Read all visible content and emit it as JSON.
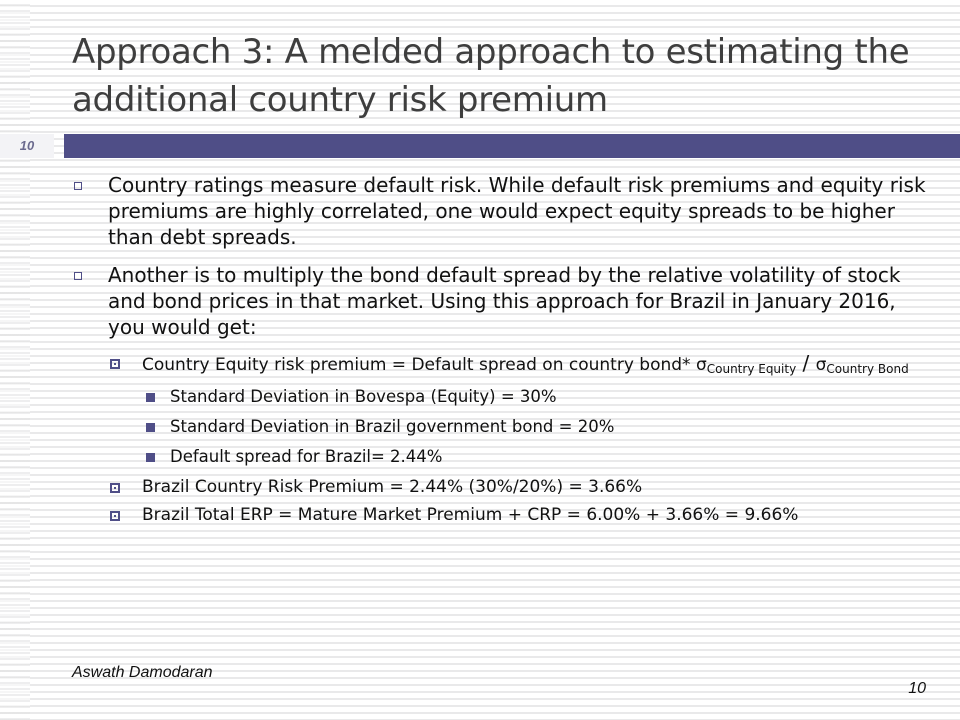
{
  "title": "Approach 3: A melded approach to estimating the additional country risk premium",
  "slide_number_badge": "10",
  "bullets": [
    {
      "text": "Country ratings measure default risk. While default risk premiums and equity risk premiums are highly correlated, one would expect equity spreads to be higher than debt spreads."
    },
    {
      "text": "Another is to multiply the bond default spread by the relative volatility of stock and bond prices in that market.  Using this approach for Brazil in January 2016, you would get:"
    }
  ],
  "sub_bullets": {
    "formula": {
      "lead": "Country Equity risk premium = Default spread on country bond* ",
      "sigma1": "σ",
      "sub1": "Country Equity",
      "slash": " / ",
      "sigma2": "σ",
      "sub2": "Country Bond"
    },
    "details": [
      {
        "text": "Standard Deviation in Bovespa (Equity) = 30%"
      },
      {
        "text": "Standard Deviation in Brazil government bond = 20%"
      },
      {
        "text": "Default spread for Brazil= 2.44%"
      }
    ],
    "crp": "Brazil Country Risk Premium = 2.44% (30%/20%) =  3.66%",
    "erp": "Brazil Total ERP = Mature Market Premium + CRP = 6.00% + 3.66% = 9.66%"
  },
  "footer": {
    "author": "Aswath Damodaran",
    "page": "10"
  },
  "colors": {
    "accent": "#4f4e87",
    "title": "#3e3e3e"
  }
}
